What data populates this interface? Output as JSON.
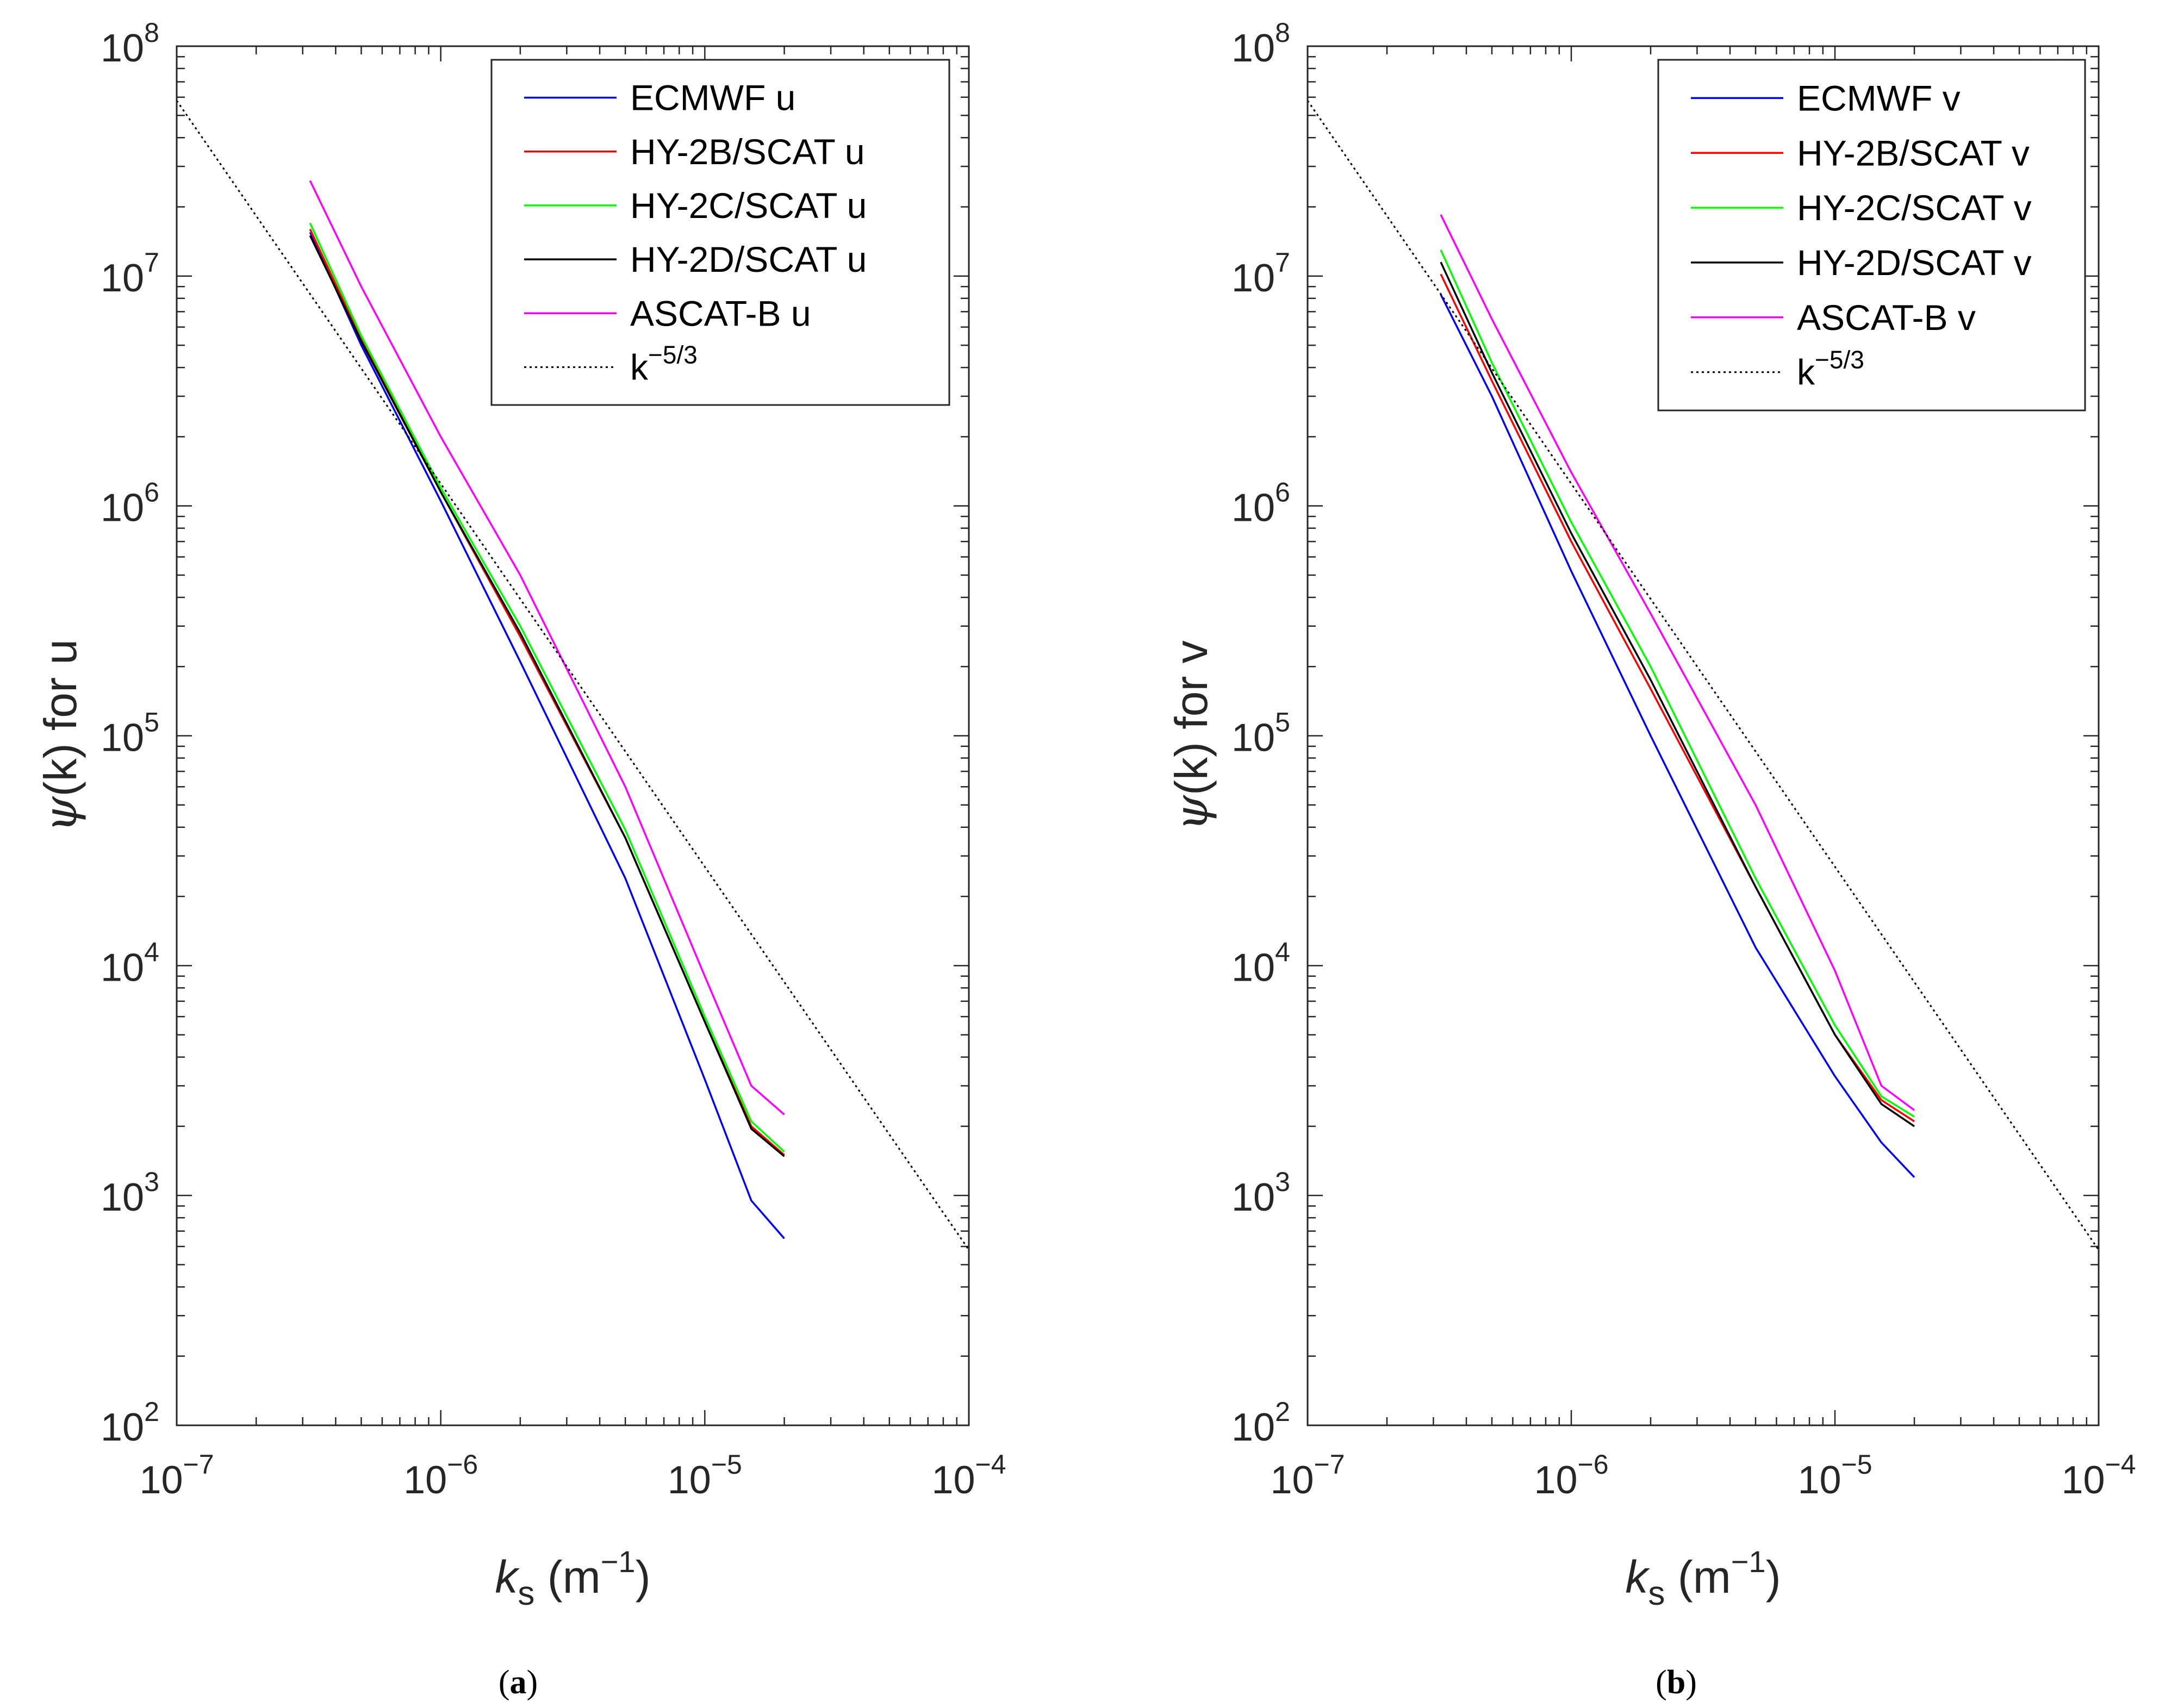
{
  "chart_data": [
    {
      "panel": "a",
      "caption_open": "(",
      "caption_letter": "a",
      "caption_close": ")",
      "type": "line",
      "xscale": "log",
      "yscale": "log",
      "xlim": [
        1e-07,
        0.0001
      ],
      "ylim": [
        100,
        100000000
      ],
      "xlabel_sym": "k",
      "xlabel_sub": "s",
      "xlabel_unit_open": " (m",
      "xlabel_unit_exp": "−1",
      "xlabel_unit_close": ")",
      "ylabel_sym": "ψ",
      "ylabel_rest": "(k) for u",
      "x_ticks": [
        {
          "base": "10",
          "exp": "−7",
          "value": 1e-07
        },
        {
          "base": "10",
          "exp": "−6",
          "value": 1e-06
        },
        {
          "base": "10",
          "exp": "−5",
          "value": 1e-05
        },
        {
          "base": "10",
          "exp": "−4",
          "value": 0.0001
        }
      ],
      "y_ticks": [
        {
          "base": "10",
          "exp": "2",
          "value": 100
        },
        {
          "base": "10",
          "exp": "3",
          "value": 1000
        },
        {
          "base": "10",
          "exp": "4",
          "value": 10000
        },
        {
          "base": "10",
          "exp": "5",
          "value": 100000
        },
        {
          "base": "10",
          "exp": "6",
          "value": 1000000
        },
        {
          "base": "10",
          "exp": "7",
          "value": 10000000
        },
        {
          "base": "10",
          "exp": "8",
          "value": 100000000
        }
      ],
      "legend_position": "top-right",
      "series": [
        {
          "name": "ECMWF u",
          "label_base": "ECMWF u",
          "label_exp": "",
          "color": "#0000ff",
          "dash": "",
          "x": [
            3.2e-07,
            5e-07,
            1e-06,
            2e-06,
            5e-06,
            1e-05,
            1.5e-05,
            2e-05
          ],
          "y": [
            15500000,
            5000000,
            1050000,
            210000,
            24000,
            3200,
            950,
            650
          ]
        },
        {
          "name": "HY-2B/SCAT u",
          "label_base": "HY-2B/SCAT u",
          "label_exp": "",
          "color": "#ff0000",
          "dash": "",
          "x": [
            3.2e-07,
            5e-07,
            1e-06,
            2e-06,
            5e-06,
            1e-05,
            1.5e-05,
            2e-05
          ],
          "y": [
            16000000,
            5300000,
            1150000,
            270000,
            36000,
            5700,
            2000,
            1500
          ]
        },
        {
          "name": "HY-2C/SCAT u",
          "label_base": "HY-2C/SCAT u",
          "label_exp": "",
          "color": "#00ff00",
          "dash": "",
          "x": [
            3.2e-07,
            5e-07,
            1e-06,
            2e-06,
            5e-06,
            1e-05,
            1.5e-05,
            2e-05
          ],
          "y": [
            17000000,
            5500000,
            1200000,
            300000,
            39000,
            6000,
            2100,
            1550
          ]
        },
        {
          "name": "HY-2D/SCAT u",
          "label_base": "HY-2D/SCAT u",
          "label_exp": "",
          "color": "#000000",
          "dash": "",
          "x": [
            3.2e-07,
            5e-07,
            1e-06,
            2e-06,
            5e-06,
            1e-05,
            1.5e-05,
            2e-05
          ],
          "y": [
            15000000,
            5200000,
            1150000,
            280000,
            36000,
            5700,
            1950,
            1480
          ]
        },
        {
          "name": "ASCAT-B u",
          "label_base": "ASCAT-B u",
          "label_exp": "",
          "color": "#ff00ff",
          "dash": "",
          "x": [
            3.2e-07,
            5e-07,
            1e-06,
            2e-06,
            5e-06,
            1e-05,
            1.5e-05,
            2e-05
          ],
          "y": [
            26000000,
            9000000,
            2000000,
            500000,
            60000,
            9000,
            3000,
            2250
          ]
        },
        {
          "name": "k^-5/3",
          "label_base": "k",
          "label_exp": "−5/3",
          "color": "#000000",
          "dash": "4,6",
          "x": [
            1e-07,
            0.0001
          ],
          "y": [
            58000000,
            580
          ]
        }
      ]
    },
    {
      "panel": "b",
      "caption_open": "(",
      "caption_letter": "b",
      "caption_close": ")",
      "type": "line",
      "xscale": "log",
      "yscale": "log",
      "xlim": [
        1e-07,
        0.0001
      ],
      "ylim": [
        100,
        100000000
      ],
      "xlabel_sym": "k",
      "xlabel_sub": "s",
      "xlabel_unit_open": " (m",
      "xlabel_unit_exp": "−1",
      "xlabel_unit_close": ")",
      "ylabel_sym": "ψ",
      "ylabel_rest": "(k) for v",
      "x_ticks": [
        {
          "base": "10",
          "exp": "−7",
          "value": 1e-07
        },
        {
          "base": "10",
          "exp": "−6",
          "value": 1e-06
        },
        {
          "base": "10",
          "exp": "−5",
          "value": 1e-05
        },
        {
          "base": "10",
          "exp": "−4",
          "value": 0.0001
        }
      ],
      "y_ticks": [
        {
          "base": "10",
          "exp": "2",
          "value": 100
        },
        {
          "base": "10",
          "exp": "3",
          "value": 1000
        },
        {
          "base": "10",
          "exp": "4",
          "value": 10000
        },
        {
          "base": "10",
          "exp": "5",
          "value": 100000
        },
        {
          "base": "10",
          "exp": "6",
          "value": 1000000
        },
        {
          "base": "10",
          "exp": "7",
          "value": 10000000
        },
        {
          "base": "10",
          "exp": "8",
          "value": 100000000
        }
      ],
      "legend_position": "top-right",
      "series": [
        {
          "name": "ECMWF v",
          "label_base": "ECMWF v",
          "label_exp": "",
          "color": "#0000ff",
          "dash": "",
          "x": [
            3.2e-07,
            5e-07,
            1e-06,
            2e-06,
            5e-06,
            1e-05,
            1.5e-05,
            2e-05
          ],
          "y": [
            8300000,
            3000000,
            520000,
            100000,
            12000,
            3300,
            1700,
            1200
          ]
        },
        {
          "name": "HY-2B/SCAT v",
          "label_base": "HY-2B/SCAT v",
          "label_exp": "",
          "color": "#ff0000",
          "dash": "",
          "x": [
            3.2e-07,
            5e-07,
            1e-06,
            2e-06,
            5e-06,
            1e-05,
            1.5e-05,
            2e-05
          ],
          "y": [
            10200000,
            3500000,
            700000,
            160000,
            22000,
            5000,
            2600,
            2100
          ]
        },
        {
          "name": "HY-2C/SCAT v",
          "label_base": "HY-2C/SCAT v",
          "label_exp": "",
          "color": "#00ff00",
          "dash": "",
          "x": [
            3.2e-07,
            5e-07,
            1e-06,
            2e-06,
            5e-06,
            1e-05,
            1.5e-05,
            2e-05
          ],
          "y": [
            13000000,
            4200000,
            850000,
            200000,
            24000,
            5500,
            2700,
            2200
          ]
        },
        {
          "name": "HY-2D/SCAT v",
          "label_base": "HY-2D/SCAT v",
          "label_exp": "",
          "color": "#000000",
          "dash": "",
          "x": [
            3.2e-07,
            5e-07,
            1e-06,
            2e-06,
            5e-06,
            1e-05,
            1.5e-05,
            2e-05
          ],
          "y": [
            11500000,
            3800000,
            760000,
            175000,
            22000,
            5000,
            2500,
            2000
          ]
        },
        {
          "name": "ASCAT-B v",
          "label_base": "ASCAT-B v",
          "label_exp": "",
          "color": "#ff00ff",
          "dash": "",
          "x": [
            3.2e-07,
            5e-07,
            1e-06,
            2e-06,
            5e-06,
            1e-05,
            1.5e-05,
            2e-05
          ],
          "y": [
            18500000,
            6500000,
            1400000,
            340000,
            50000,
            9500,
            3000,
            2350
          ]
        },
        {
          "name": "k^-5/3",
          "label_base": "k",
          "label_exp": "−5/3",
          "color": "#000000",
          "dash": "4,6",
          "x": [
            1e-07,
            0.0001
          ],
          "y": [
            58000000,
            580
          ]
        }
      ]
    }
  ]
}
